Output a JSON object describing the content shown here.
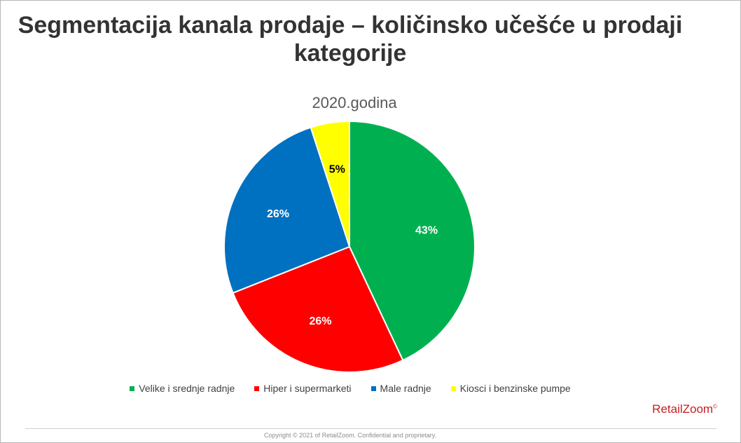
{
  "title": "Segmentacija kanala prodaje – količinsko učešće u prodaji kategorije",
  "footer": {
    "brand": "RetailZoom",
    "brand_mark": "©",
    "copyright": "Copyright © 2021 of RetailZoom. Confidential and proprietary."
  },
  "chart_data": {
    "type": "pie",
    "title": "2020.godina",
    "categories": [
      "Velike i srednje radnje",
      "Hiper i supermarketi",
      "Male radnje",
      "Kiosci i benzinske pumpe"
    ],
    "values": [
      43,
      26,
      26,
      5
    ],
    "labels": [
      "43%",
      "26%",
      "26%",
      "5%"
    ],
    "colors": [
      "#00b050",
      "#ff0000",
      "#0070c0",
      "#ffff00"
    ],
    "label_colors": [
      "#ffffff",
      "#ffffff",
      "#ffffff",
      "#000000"
    ],
    "legend_position": "bottom",
    "start_angle": "top, clockwise"
  }
}
